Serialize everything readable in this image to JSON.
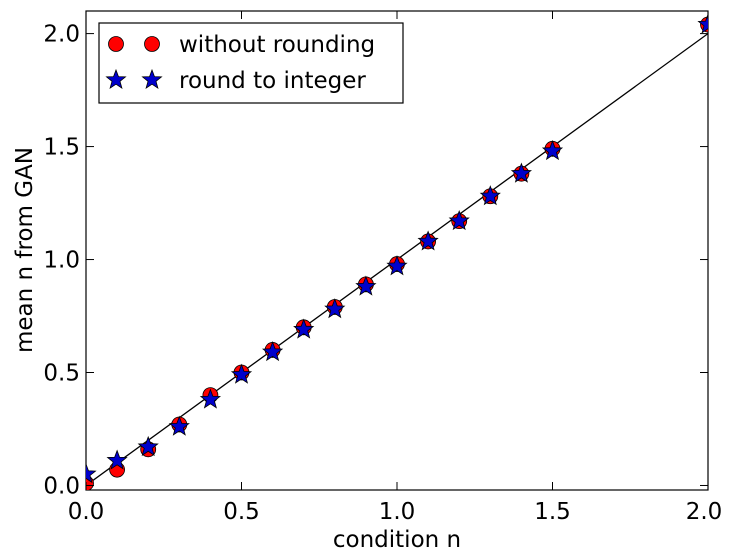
{
  "chart_data": {
    "type": "scatter",
    "xlabel": "condition n",
    "ylabel": "mean n from GAN",
    "xlim": [
      0.0,
      2.0
    ],
    "ylim": [
      -0.02,
      2.1
    ],
    "x_ticks": [
      0.0,
      0.5,
      1.0,
      1.5,
      2.0
    ],
    "x_tick_labels": [
      "0.0",
      "0.5",
      "1.0",
      "1.5",
      "2.0"
    ],
    "y_ticks": [
      0.0,
      0.5,
      1.0,
      1.5,
      2.0
    ],
    "y_tick_labels": [
      "0.0",
      "0.5",
      "1.0",
      "1.5",
      "2.0"
    ],
    "grid": false,
    "legend_position": "top-left",
    "reference_line": {
      "x": [
        0.0,
        2.0
      ],
      "y": [
        0.0,
        2.0
      ],
      "color": "#000000"
    },
    "series": [
      {
        "name": "without rounding",
        "marker": "circle",
        "color": "#ff0000",
        "x": [
          0.0,
          0.1,
          0.2,
          0.3,
          0.4,
          0.5,
          0.6,
          0.7,
          0.8,
          0.9,
          1.0,
          1.1,
          1.2,
          1.3,
          1.4,
          1.5,
          2.0
        ],
        "y": [
          0.01,
          0.07,
          0.16,
          0.27,
          0.4,
          0.5,
          0.6,
          0.7,
          0.79,
          0.89,
          0.98,
          1.08,
          1.17,
          1.28,
          1.38,
          1.49,
          2.04
        ]
      },
      {
        "name": "round to integer",
        "marker": "star",
        "color": "#0000cc",
        "x": [
          0.0,
          0.1,
          0.2,
          0.3,
          0.4,
          0.5,
          0.6,
          0.7,
          0.8,
          0.9,
          1.0,
          1.1,
          1.2,
          1.3,
          1.4,
          1.5,
          2.0
        ],
        "y": [
          0.05,
          0.11,
          0.17,
          0.26,
          0.38,
          0.49,
          0.59,
          0.69,
          0.78,
          0.88,
          0.97,
          1.08,
          1.17,
          1.28,
          1.38,
          1.48,
          2.04
        ]
      }
    ]
  }
}
